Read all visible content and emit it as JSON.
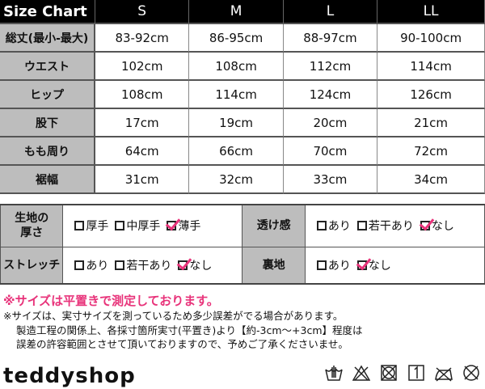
{
  "size_chart": {
    "title": "Size Chart",
    "sizes": [
      "S",
      "M",
      "L",
      "LL"
    ],
    "rows": [
      {
        "label": "総丈(最小-最大)",
        "values": [
          "83-92cm",
          "86-95cm",
          "88-97cm",
          "90-100cm"
        ]
      },
      {
        "label": "ウエスト",
        "values": [
          "102cm",
          "108cm",
          "112cm",
          "114cm"
        ]
      },
      {
        "label": "ヒップ",
        "values": [
          "108cm",
          "114cm",
          "124cm",
          "126cm"
        ]
      },
      {
        "label": "股下",
        "values": [
          "17cm",
          "19cm",
          "20cm",
          "21cm"
        ]
      },
      {
        "label": "もも周り",
        "values": [
          "64cm",
          "66cm",
          "70cm",
          "72cm"
        ]
      },
      {
        "label": "裾幅",
        "values": [
          "31cm",
          "32cm",
          "33cm",
          "34cm"
        ]
      }
    ]
  },
  "properties": [
    {
      "label": "生地の厚さ",
      "options": [
        {
          "text": "厚手",
          "checked": false
        },
        {
          "text": "中厚手",
          "checked": false
        },
        {
          "text": "薄手",
          "checked": true
        }
      ]
    },
    {
      "label": "透け感",
      "options": [
        {
          "text": "あり",
          "checked": false
        },
        {
          "text": "若干あり",
          "checked": false
        },
        {
          "text": "なし",
          "checked": true
        }
      ]
    },
    {
      "label": "ストレッチ",
      "options": [
        {
          "text": "あり",
          "checked": false
        },
        {
          "text": "若干あり",
          "checked": false
        },
        {
          "text": "なし",
          "checked": true
        }
      ]
    },
    {
      "label": "裏地",
      "options": [
        {
          "text": "あり",
          "checked": false
        },
        {
          "text": "なし",
          "checked": true
        }
      ]
    }
  ],
  "notes": {
    "highlight": "※サイズは平置きで測定しております。",
    "line1": "※サイズは、実寸サイズを測っているため多少誤差がでる場合があります。",
    "line2": "製造工程の関係上、各採寸箇所実寸(平置き)より【約-3cm～+3cm】程度は",
    "line3": "誤差の許容範囲とさせて頂いておりますので、予めご了承くださいませ。"
  },
  "brand": "teddyshop",
  "care_icons": [
    "hand-wash-icon",
    "no-bleach-icon",
    "no-tumble-dry-icon",
    "line-dry-shade-icon",
    "iron-low-icon",
    "no-dry-clean-icon"
  ],
  "colors": {
    "header_bg": "#000000",
    "label_bg": "#bdbdbd",
    "check": "#e8337a"
  }
}
